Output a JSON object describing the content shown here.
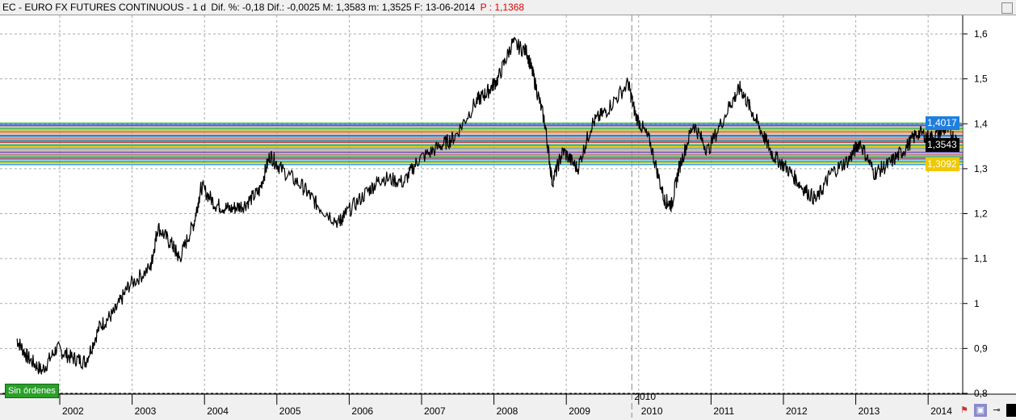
{
  "header": {
    "symbol": "EC - EURO FX FUTURES CONTINUOUS - 1 d",
    "stats": "Dif. %: -0,18 Dif.: -0,0025 M: 1,3583 m: 1,3525 F: 13-06-2014",
    "price": "P : 1,1368"
  },
  "price_tags": {
    "high": "1,4017",
    "last": "1,3543",
    "low": "1,3092"
  },
  "orders_label": "Sin órdenes",
  "cursor_year_label": "2010",
  "colors": {
    "high": "#1e7fe0",
    "last": "#000000",
    "low": "#f0c800"
  },
  "chart_data": {
    "type": "line",
    "title": "EC - EURO FX FUTURES CONTINUOUS",
    "y_ticks": [
      "1,6",
      "1,5",
      "1,4",
      "1,3",
      "1,2",
      "1,1",
      "1",
      "0,9",
      "0,8"
    ],
    "y_tick_values": [
      1.6,
      1.5,
      1.4,
      1.3,
      1.2,
      1.1,
      1.0,
      0.9,
      0.8
    ],
    "ylim": [
      0.8,
      1.6
    ],
    "x_ticks": [
      "2002",
      "2003",
      "2004",
      "2005",
      "2006",
      "2007",
      "2008",
      "2009",
      "2010",
      "2011",
      "2012",
      "2013",
      "2014"
    ],
    "x_tick_values": [
      2002,
      2003,
      2004,
      2005,
      2006,
      2007,
      2008,
      2009,
      2010,
      2011,
      2012,
      2013,
      2014
    ],
    "band": [
      1.3092,
      1.4017
    ],
    "series": [
      {
        "name": "EC",
        "x": [
          2001.45,
          2001.6,
          2001.8,
          2002.0,
          2002.2,
          2002.4,
          2002.6,
          2002.8,
          2003.0,
          2003.3,
          2003.4,
          2003.6,
          2003.7,
          2003.9,
          2004.0,
          2004.2,
          2004.4,
          2004.6,
          2004.8,
          2004.95,
          2005.1,
          2005.4,
          2005.6,
          2005.9,
          2006.0,
          2006.3,
          2006.5,
          2006.8,
          2007.0,
          2007.3,
          2007.5,
          2007.8,
          2007.95,
          2008.1,
          2008.3,
          2008.5,
          2008.6,
          2008.75,
          2008.85,
          2009.0,
          2009.2,
          2009.4,
          2009.6,
          2009.9,
          2010.0,
          2010.2,
          2010.4,
          2010.5,
          2010.6,
          2010.8,
          2011.0,
          2011.3,
          2011.45,
          2011.6,
          2011.75,
          2011.9,
          2012.1,
          2012.3,
          2012.5,
          2012.7,
          2012.95,
          2013.1,
          2013.3,
          2013.5,
          2013.7,
          2013.9,
          2014.1,
          2014.3,
          2014.45
        ],
        "values": [
          0.92,
          0.88,
          0.85,
          0.9,
          0.88,
          0.87,
          0.95,
          0.98,
          1.04,
          1.08,
          1.17,
          1.13,
          1.1,
          1.18,
          1.26,
          1.22,
          1.21,
          1.22,
          1.25,
          1.33,
          1.3,
          1.26,
          1.22,
          1.18,
          1.2,
          1.25,
          1.28,
          1.27,
          1.32,
          1.35,
          1.37,
          1.45,
          1.47,
          1.5,
          1.58,
          1.56,
          1.5,
          1.4,
          1.27,
          1.34,
          1.3,
          1.4,
          1.43,
          1.49,
          1.42,
          1.36,
          1.23,
          1.22,
          1.3,
          1.4,
          1.34,
          1.44,
          1.48,
          1.43,
          1.38,
          1.33,
          1.3,
          1.26,
          1.23,
          1.29,
          1.32,
          1.36,
          1.29,
          1.31,
          1.34,
          1.38,
          1.37,
          1.39,
          1.36
        ]
      }
    ]
  }
}
